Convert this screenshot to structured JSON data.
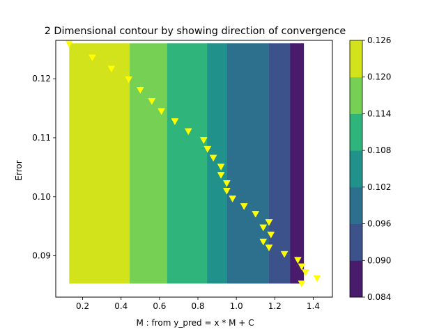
{
  "chart_data": {
    "type": "contour",
    "title": "2 Dimensional contour by showing direction of convergence",
    "xlabel": "M : from y_pred = x * M + C",
    "ylabel": "Error",
    "xlim": [
      0.06,
      1.5
    ],
    "ylim": [
      0.083,
      0.1265
    ],
    "x_ticks": [
      0.2,
      0.4,
      0.6,
      0.8,
      1.0,
      1.2,
      1.4
    ],
    "x_tick_labels": [
      "0.2",
      "0.4",
      "0.6",
      "0.8",
      "1.0",
      "1.2",
      "1.4"
    ],
    "y_ticks": [
      0.09,
      0.1,
      0.11,
      0.12
    ],
    "y_tick_labels": [
      "0.09",
      "0.10",
      "0.11",
      "0.12"
    ],
    "contour_extent": {
      "x": [
        0.13,
        1.35
      ],
      "y": [
        0.0853,
        0.126
      ]
    },
    "contour_bands": [
      {
        "x_start": 0.13,
        "x_end": 0.445,
        "color": "#d2e21b"
      },
      {
        "x_start": 0.445,
        "x_end": 0.64,
        "color": "#75d054"
      },
      {
        "x_start": 0.64,
        "x_end": 0.848,
        "color": "#2fb47c"
      },
      {
        "x_start": 0.848,
        "x_end": 0.952,
        "color": "#21918c"
      },
      {
        "x_start": 0.952,
        "x_end": 1.17,
        "color": "#2d708e"
      },
      {
        "x_start": 1.17,
        "x_end": 1.28,
        "color": "#3b528b"
      },
      {
        "x_start": 1.28,
        "x_end": 1.35,
        "color": "#481b6d"
      }
    ],
    "colorbar": {
      "levels": [
        0.084,
        0.09,
        0.096,
        0.102,
        0.108,
        0.114,
        0.12,
        0.126
      ],
      "tick_labels": [
        "0.084",
        "0.090",
        "0.096",
        "0.102",
        "0.108",
        "0.114",
        "0.120",
        "0.126"
      ],
      "colors": [
        "#481b6d",
        "#3b528b",
        "#2d708e",
        "#21918c",
        "#2fb47c",
        "#75d054",
        "#d2e21b"
      ]
    },
    "series": [
      {
        "marker": "triangle-down",
        "color": "#ffff00",
        "points": [
          [
            0.13,
            0.1259
          ],
          [
            0.25,
            0.1236
          ],
          [
            0.35,
            0.1217
          ],
          [
            0.44,
            0.1199
          ],
          [
            0.5,
            0.1181
          ],
          [
            0.56,
            0.1162
          ],
          [
            0.61,
            0.1145
          ],
          [
            0.68,
            0.1128
          ],
          [
            0.75,
            0.1111
          ],
          [
            0.83,
            0.1096
          ],
          [
            0.85,
            0.1081
          ],
          [
            0.88,
            0.1066
          ],
          [
            0.92,
            0.1051
          ],
          [
            0.92,
            0.1037
          ],
          [
            0.95,
            0.1023
          ],
          [
            0.95,
            0.101
          ],
          [
            0.98,
            0.0997
          ],
          [
            1.04,
            0.0984
          ],
          [
            1.1,
            0.0971
          ],
          [
            1.17,
            0.0957
          ],
          [
            1.14,
            0.0948
          ],
          [
            1.18,
            0.0936
          ],
          [
            1.14,
            0.0924
          ],
          [
            1.17,
            0.0914
          ],
          [
            1.25,
            0.0903
          ],
          [
            1.32,
            0.0893
          ],
          [
            1.34,
            0.0882
          ],
          [
            1.36,
            0.0872
          ],
          [
            1.42,
            0.0862
          ],
          [
            1.34,
            0.0853
          ]
        ]
      }
    ]
  }
}
